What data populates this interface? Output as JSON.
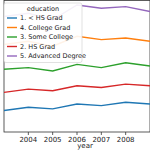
{
  "chart_data": {
    "type": "line",
    "x_label": "year",
    "legend_title": "education",
    "x": [
      2003,
      2004,
      2005,
      2006,
      2007,
      2008,
      2009
    ],
    "xlim": [
      2003,
      2009
    ],
    "xticks": [
      2004,
      2005,
      2006,
      2007,
      2008
    ],
    "ylim": [
      80,
      160
    ],
    "yticks": [],
    "tick_labels": "x",
    "legend": "upper left",
    "series": [
      {
        "name": "1. < HS Grad",
        "color": "#1f77b4",
        "values": [
          93,
          95,
          94,
          97,
          96,
          98,
          97
        ]
      },
      {
        "name": "4. College Grad",
        "color": "#ff7f0e",
        "values": [
          133,
          135,
          132,
          138,
          136,
          137,
          135
        ]
      },
      {
        "name": "3. Some College",
        "color": "#2ca02c",
        "values": [
          118,
          119,
          117,
          121,
          119,
          122,
          120
        ]
      },
      {
        "name": "2. HS Grad",
        "color": "#d62728",
        "values": [
          104,
          106,
          105,
          108,
          107,
          109,
          108
        ]
      },
      {
        "name": "5. Advanced Degree",
        "color": "#9467bd",
        "values": [
          150,
          152,
          148,
          157,
          155,
          156,
          153
        ]
      }
    ]
  }
}
